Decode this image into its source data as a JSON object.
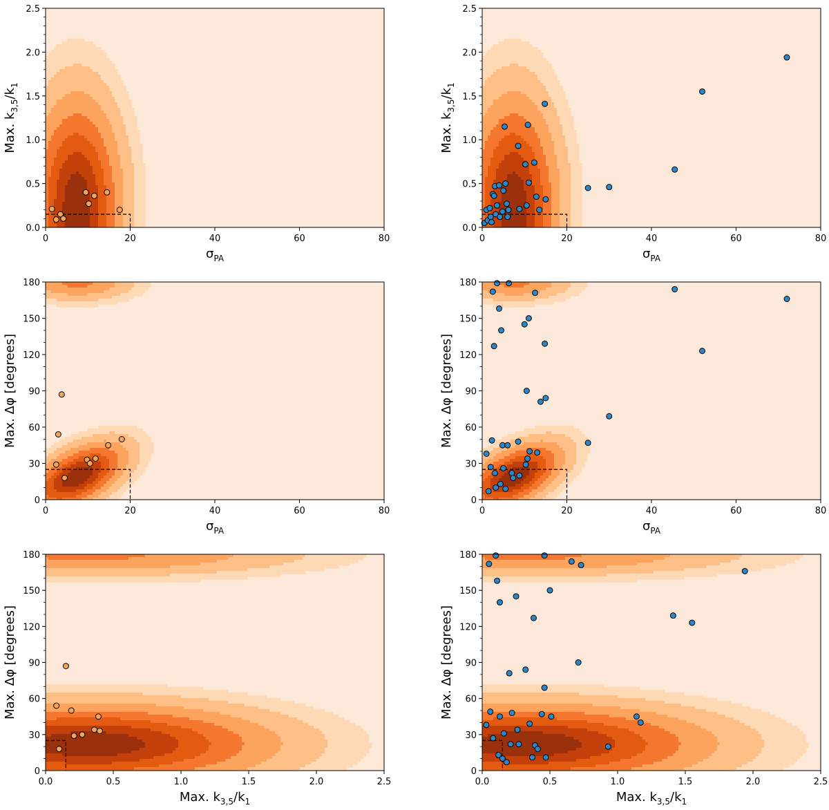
{
  "figure": {
    "description_tag": "six-panel contour figure",
    "contour_fill_colors": [
      "#fde9d9",
      "#fdd9b5",
      "#fdbf85",
      "#fca35e",
      "#f5772f",
      "#e35a11",
      "#c4400a",
      "#9a300c"
    ],
    "contour_line_colors": [
      "#ffffff",
      "#ffffff",
      "#d6d6d6",
      "#bdbdbd",
      "#9a9a9a",
      "#6e6e6e",
      "#444444",
      "#111111"
    ],
    "orange_marker_color": "#f5a55a",
    "blue_marker_color": "#2f86c7",
    "marker_edge_color": "#000000",
    "box_line_color": "#000000"
  },
  "chart_data": [
    {
      "type": "scatter",
      "title": "",
      "xlabel": "σ",
      "xlabel_sub": "PA",
      "ylabel": "Max. k",
      "ylabel_sub": "3,5",
      "ylabel_tail": "/k",
      "ylabel_tail_sub": "1",
      "xlim": [
        0,
        80
      ],
      "ylim": [
        0,
        2.5
      ],
      "xticks": [
        "0",
        "20",
        "40",
        "60",
        "80"
      ],
      "yticks": [
        "0.0",
        "0.5",
        "1.0",
        "1.5",
        "2.0",
        "2.5"
      ],
      "xtick_values": [
        0,
        20,
        40,
        60,
        80
      ],
      "ytick_values": [
        0,
        0.5,
        1.0,
        1.5,
        2.0,
        2.5
      ],
      "minor_y_step": 0.1,
      "marker": "orange",
      "density": {
        "cx": 7.5,
        "cy": 0.25,
        "sx": 6.5,
        "sy": 0.75,
        "rho": 0.0,
        "mirror_y": false,
        "mode": "elliptic"
      },
      "box": {
        "x": 20,
        "y": 0.15
      },
      "points": [
        {
          "x": 1.5,
          "y": 0.21
        },
        {
          "x": 2.5,
          "y": 0.09
        },
        {
          "x": 3.5,
          "y": 0.15
        },
        {
          "x": 4.2,
          "y": 0.1
        },
        {
          "x": 9.5,
          "y": 0.4
        },
        {
          "x": 10.2,
          "y": 0.27
        },
        {
          "x": 11.5,
          "y": 0.36
        },
        {
          "x": 14.5,
          "y": 0.4
        },
        {
          "x": 17.5,
          "y": 0.2
        }
      ]
    },
    {
      "type": "scatter",
      "title": "",
      "xlabel": "σ",
      "xlabel_sub": "PA",
      "ylabel": "Max. k",
      "ylabel_sub": "3,5",
      "ylabel_tail": "/k",
      "ylabel_tail_sub": "1",
      "xlim": [
        0,
        80
      ],
      "ylim": [
        0,
        2.5
      ],
      "xticks": [
        "0",
        "20",
        "40",
        "60",
        "80"
      ],
      "yticks": [
        "0.0",
        "0.5",
        "1.0",
        "1.5",
        "2.0",
        "2.5"
      ],
      "xtick_values": [
        0,
        20,
        40,
        60,
        80
      ],
      "ytick_values": [
        0,
        0.5,
        1.0,
        1.5,
        2.0,
        2.5
      ],
      "minor_y_step": 0.1,
      "marker": "blue",
      "density": {
        "cx": 7.5,
        "cy": 0.25,
        "sx": 6.5,
        "sy": 0.75,
        "rho": 0.0,
        "mirror_y": false,
        "mode": "elliptic"
      },
      "box": {
        "x": 20,
        "y": 0.15
      },
      "points": [
        {
          "x": 0.5,
          "y": 0.05
        },
        {
          "x": 1.0,
          "y": 0.2
        },
        {
          "x": 1.3,
          "y": 0.08
        },
        {
          "x": 1.8,
          "y": 0.22
        },
        {
          "x": 2.0,
          "y": 0.12
        },
        {
          "x": 2.2,
          "y": 0.06
        },
        {
          "x": 2.5,
          "y": 0.38
        },
        {
          "x": 2.8,
          "y": 0.36
        },
        {
          "x": 3.0,
          "y": 0.47
        },
        {
          "x": 3.2,
          "y": 0.15
        },
        {
          "x": 3.5,
          "y": 0.25
        },
        {
          "x": 4.0,
          "y": 0.48
        },
        {
          "x": 4.2,
          "y": 0.12
        },
        {
          "x": 4.8,
          "y": 0.18
        },
        {
          "x": 5.0,
          "y": 0.42
        },
        {
          "x": 5.3,
          "y": 1.15
        },
        {
          "x": 5.5,
          "y": 0.5
        },
        {
          "x": 5.8,
          "y": 0.27
        },
        {
          "x": 6.0,
          "y": 0.12
        },
        {
          "x": 6.2,
          "y": 0.2
        },
        {
          "x": 8.5,
          "y": 0.93
        },
        {
          "x": 8.8,
          "y": 0.21
        },
        {
          "x": 10.2,
          "y": 0.72
        },
        {
          "x": 10.5,
          "y": 0.25
        },
        {
          "x": 10.8,
          "y": 1.17
        },
        {
          "x": 11.0,
          "y": 0.51
        },
        {
          "x": 12.3,
          "y": 0.74
        },
        {
          "x": 12.8,
          "y": 0.35
        },
        {
          "x": 13.5,
          "y": 0.2
        },
        {
          "x": 14.8,
          "y": 1.41
        },
        {
          "x": 15.0,
          "y": 0.32
        },
        {
          "x": 25.0,
          "y": 0.45
        },
        {
          "x": 30.0,
          "y": 0.46
        },
        {
          "x": 45.5,
          "y": 0.66
        },
        {
          "x": 52.0,
          "y": 1.55
        },
        {
          "x": 72.0,
          "y": 1.94
        }
      ]
    },
    {
      "type": "scatter",
      "title": "",
      "xlabel": "σ",
      "xlabel_sub": "PA",
      "ylabel": "Max. Δφ [degrees]",
      "ylabel_sub": "",
      "ylabel_tail": "",
      "ylabel_tail_sub": "",
      "xlim": [
        0,
        80
      ],
      "ylim": [
        0,
        180
      ],
      "xticks": [
        "0",
        "20",
        "40",
        "60",
        "80"
      ],
      "yticks": [
        "0",
        "30",
        "60",
        "90",
        "120",
        "150",
        "180"
      ],
      "xtick_values": [
        0,
        20,
        40,
        60,
        80
      ],
      "ytick_values": [
        0,
        30,
        60,
        90,
        120,
        150,
        180
      ],
      "minor_y_step": 10,
      "marker": "orange",
      "density": {
        "cx": 7.5,
        "cy": 19,
        "sx": 7.0,
        "sy": 17,
        "rho": 0.55,
        "mirror_y": true,
        "mode": "gauss"
      },
      "box": {
        "x": 20,
        "y": 25
      },
      "points": [
        {
          "x": 2.5,
          "y": 29
        },
        {
          "x": 3.0,
          "y": 54
        },
        {
          "x": 3.8,
          "y": 87
        },
        {
          "x": 4.5,
          "y": 18
        },
        {
          "x": 9.8,
          "y": 33
        },
        {
          "x": 10.5,
          "y": 30
        },
        {
          "x": 11.8,
          "y": 34
        },
        {
          "x": 14.8,
          "y": 45
        },
        {
          "x": 18.0,
          "y": 50
        }
      ]
    },
    {
      "type": "scatter",
      "title": "",
      "xlabel": "σ",
      "xlabel_sub": "PA",
      "ylabel": "Max. Δφ [degrees]",
      "ylabel_sub": "",
      "ylabel_tail": "",
      "ylabel_tail_sub": "",
      "xlim": [
        0,
        80
      ],
      "ylim": [
        0,
        180
      ],
      "xticks": [
        "0",
        "20",
        "40",
        "60",
        "80"
      ],
      "yticks": [
        "0",
        "30",
        "60",
        "90",
        "120",
        "150",
        "180"
      ],
      "xtick_values": [
        0,
        20,
        40,
        60,
        80
      ],
      "ytick_values": [
        0,
        30,
        60,
        90,
        120,
        150,
        180
      ],
      "minor_y_step": 10,
      "marker": "blue",
      "density": {
        "cx": 7.5,
        "cy": 19,
        "sx": 7.0,
        "sy": 17,
        "rho": 0.55,
        "mirror_y": true,
        "mode": "gauss"
      },
      "box": {
        "x": 20,
        "y": 25
      },
      "points": [
        {
          "x": 1.0,
          "y": 38
        },
        {
          "x": 1.5,
          "y": 7
        },
        {
          "x": 2.0,
          "y": 27
        },
        {
          "x": 2.3,
          "y": 49
        },
        {
          "x": 2.5,
          "y": 172
        },
        {
          "x": 2.8,
          "y": 127
        },
        {
          "x": 3.0,
          "y": 22
        },
        {
          "x": 3.2,
          "y": 10
        },
        {
          "x": 3.5,
          "y": 179
        },
        {
          "x": 4.0,
          "y": 158
        },
        {
          "x": 4.3,
          "y": 13
        },
        {
          "x": 4.5,
          "y": 140
        },
        {
          "x": 4.8,
          "y": 45
        },
        {
          "x": 5.0,
          "y": 26
        },
        {
          "x": 5.5,
          "y": 9
        },
        {
          "x": 6.0,
          "y": 45
        },
        {
          "x": 6.3,
          "y": 179
        },
        {
          "x": 7.0,
          "y": 22
        },
        {
          "x": 7.3,
          "y": 18
        },
        {
          "x": 8.5,
          "y": 48
        },
        {
          "x": 8.8,
          "y": 20
        },
        {
          "x": 10.0,
          "y": 145
        },
        {
          "x": 10.3,
          "y": 29
        },
        {
          "x": 10.5,
          "y": 90
        },
        {
          "x": 10.7,
          "y": 34
        },
        {
          "x": 11.0,
          "y": 150
        },
        {
          "x": 11.2,
          "y": 40
        },
        {
          "x": 12.5,
          "y": 171
        },
        {
          "x": 13.0,
          "y": 39
        },
        {
          "x": 13.8,
          "y": 81
        },
        {
          "x": 14.8,
          "y": 129
        },
        {
          "x": 15.0,
          "y": 84
        },
        {
          "x": 25.0,
          "y": 47
        },
        {
          "x": 30.0,
          "y": 69
        },
        {
          "x": 45.5,
          "y": 174
        },
        {
          "x": 52.0,
          "y": 123
        },
        {
          "x": 72.0,
          "y": 166
        }
      ]
    },
    {
      "type": "scatter",
      "title": "",
      "xlabel": "Max. k",
      "xlabel_sub": "3,5",
      "xlabel_tail": "/k",
      "xlabel_tail_sub": "1",
      "ylabel": "Max. Δφ [degrees]",
      "ylabel_sub": "",
      "ylabel_tail": "",
      "ylabel_tail_sub": "",
      "xlim": [
        0,
        2.5
      ],
      "ylim": [
        0,
        180
      ],
      "xticks": [
        "0.0",
        "0.5",
        "1.0",
        "1.5",
        "2.0",
        "2.5"
      ],
      "yticks": [
        "0",
        "30",
        "60",
        "90",
        "120",
        "150",
        "180"
      ],
      "xtick_values": [
        0,
        0.5,
        1.0,
        1.5,
        2.0,
        2.5
      ],
      "ytick_values": [
        0,
        30,
        60,
        90,
        120,
        150,
        180
      ],
      "minor_y_step": 10,
      "marker": "orange",
      "density": {
        "cx": 0.32,
        "cy": 22,
        "sx": 0.82,
        "sy": 20,
        "rho": 0.0,
        "mirror_y": true,
        "mode": "gauss"
      },
      "box": {
        "x": 0.15,
        "y": 25
      },
      "points": [
        {
          "x": 0.08,
          "y": 54
        },
        {
          "x": 0.1,
          "y": 18
        },
        {
          "x": 0.15,
          "y": 87
        },
        {
          "x": 0.19,
          "y": 50
        },
        {
          "x": 0.21,
          "y": 29
        },
        {
          "x": 0.27,
          "y": 30
        },
        {
          "x": 0.36,
          "y": 34
        },
        {
          "x": 0.39,
          "y": 45
        },
        {
          "x": 0.4,
          "y": 33
        }
      ]
    },
    {
      "type": "scatter",
      "title": "",
      "xlabel": "Max. k",
      "xlabel_sub": "3,5",
      "xlabel_tail": "/k",
      "xlabel_tail_sub": "1",
      "ylabel": "Max. Δφ [degrees]",
      "ylabel_sub": "",
      "ylabel_tail": "",
      "ylabel_tail_sub": "",
      "xlim": [
        0,
        2.5
      ],
      "ylim": [
        0,
        180
      ],
      "xticks": [
        "0.0",
        "0.5",
        "1.0",
        "1.5",
        "2.0",
        "2.5"
      ],
      "yticks": [
        "0",
        "30",
        "60",
        "90",
        "120",
        "150",
        "180"
      ],
      "xtick_values": [
        0,
        0.5,
        1.0,
        1.5,
        2.0,
        2.5
      ],
      "ytick_values": [
        0,
        30,
        60,
        90,
        120,
        150,
        180
      ],
      "minor_y_step": 10,
      "marker": "blue",
      "density": {
        "cx": 0.32,
        "cy": 22,
        "sx": 0.82,
        "sy": 20,
        "rho": 0.0,
        "mirror_y": true,
        "mode": "gauss"
      },
      "box": {
        "x": 0.15,
        "y": 25
      },
      "points": [
        {
          "x": 0.03,
          "y": 38
        },
        {
          "x": 0.05,
          "y": 172
        },
        {
          "x": 0.06,
          "y": 49
        },
        {
          "x": 0.08,
          "y": 27
        },
        {
          "x": 0.1,
          "y": 179
        },
        {
          "x": 0.11,
          "y": 158
        },
        {
          "x": 0.12,
          "y": 13
        },
        {
          "x": 0.13,
          "y": 140
        },
        {
          "x": 0.13,
          "y": 45
        },
        {
          "x": 0.15,
          "y": 10
        },
        {
          "x": 0.16,
          "y": 31
        },
        {
          "x": 0.18,
          "y": 7
        },
        {
          "x": 0.2,
          "y": 81
        },
        {
          "x": 0.21,
          "y": 22
        },
        {
          "x": 0.22,
          "y": 48
        },
        {
          "x": 0.25,
          "y": 145
        },
        {
          "x": 0.26,
          "y": 34
        },
        {
          "x": 0.27,
          "y": 22
        },
        {
          "x": 0.32,
          "y": 84
        },
        {
          "x": 0.35,
          "y": 39
        },
        {
          "x": 0.37,
          "y": 11
        },
        {
          "x": 0.38,
          "y": 127
        },
        {
          "x": 0.39,
          "y": 21
        },
        {
          "x": 0.41,
          "y": 18
        },
        {
          "x": 0.44,
          "y": 47
        },
        {
          "x": 0.46,
          "y": 179
        },
        {
          "x": 0.46,
          "y": 69
        },
        {
          "x": 0.47,
          "y": 11
        },
        {
          "x": 0.5,
          "y": 150
        },
        {
          "x": 0.51,
          "y": 45
        },
        {
          "x": 0.66,
          "y": 174
        },
        {
          "x": 0.71,
          "y": 90
        },
        {
          "x": 0.73,
          "y": 171
        },
        {
          "x": 0.93,
          "y": 20
        },
        {
          "x": 1.14,
          "y": 45
        },
        {
          "x": 1.17,
          "y": 40
        },
        {
          "x": 1.41,
          "y": 129
        },
        {
          "x": 1.55,
          "y": 123
        },
        {
          "x": 1.94,
          "y": 166
        }
      ]
    }
  ]
}
